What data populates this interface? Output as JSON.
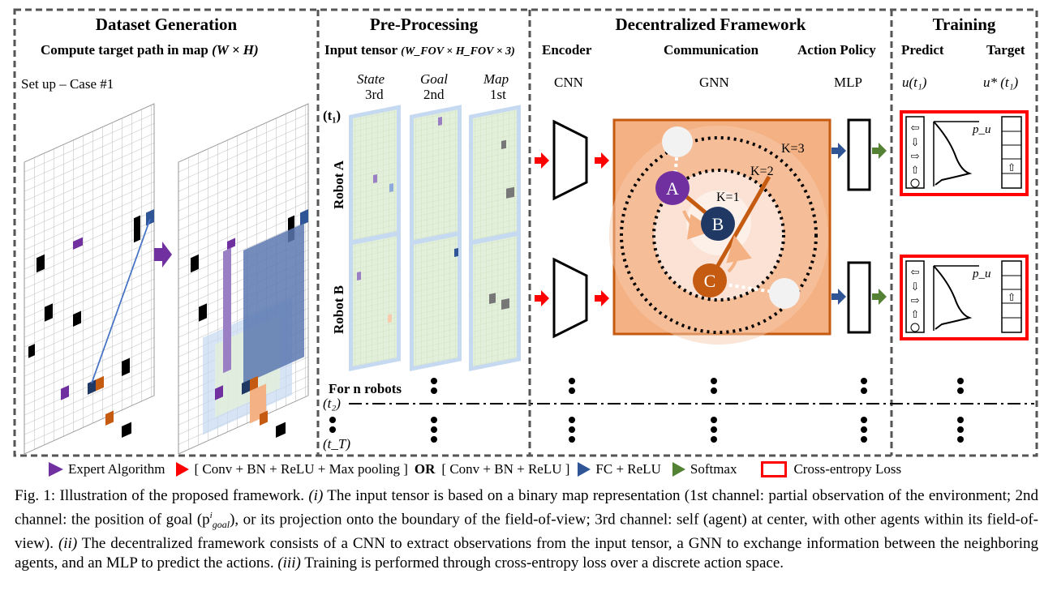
{
  "sections": {
    "dataset": "Dataset Generation",
    "preprocessing": "Pre-Processing",
    "framework": "Decentralized Framework",
    "training": "Training"
  },
  "dataset": {
    "subtitle": "Compute target path in map",
    "subtitle_math": "(W × H)",
    "setup": "Set up – Case #1"
  },
  "pre": {
    "input_tensor": "Input tensor",
    "input_tensor_math": "(W_FOV × H_FOV × 3)",
    "channels": [
      {
        "name": "State",
        "order": "3rd"
      },
      {
        "name": "Goal",
        "order": "2nd"
      },
      {
        "name": "Map",
        "order": "1st"
      }
    ],
    "t1": "(t₁)",
    "robot_a": "Robot A",
    "robot_b": "Robot B",
    "for_n": "For n robots",
    "t2": "(t₂)",
    "tT": "(t_T)"
  },
  "framework": {
    "encoder": "Encoder",
    "encoder_sub": "CNN",
    "communication": "Communication",
    "communication_sub": "GNN",
    "action_policy": "Action Policy",
    "action_policy_sub": "MLP",
    "k3": "K=3",
    "k2": "K=2",
    "k1": "K=1",
    "nodes": [
      "A",
      "B",
      "C"
    ]
  },
  "training": {
    "predict": "Predict",
    "target": "Target",
    "predict_math": "u(t₁)",
    "target_math": "u* (t₁)",
    "pu": "p_u"
  },
  "legend": {
    "expert": "Expert Algorithm",
    "conv": "[ Conv + BN + ReLU + Max pooling ]",
    "or": "OR",
    "conv2": "[ Conv + BN + ReLU ]",
    "fc": "FC + ReLU",
    "softmax": "Softmax",
    "loss": "Cross-entropy Loss"
  },
  "colors": {
    "purple": "#7030a0",
    "red": "#ff0000",
    "blue": "#2f5597",
    "green": "#548235",
    "orange_bg": "#f4b183",
    "orange_dark": "#c55a11",
    "navy": "#203864"
  },
  "caption": {
    "fig": "Fig. 1: Illustration of the proposed framework.",
    "i": "(i)",
    "t1": "The input tensor is based on a binary map representation (1st channel: partial observation of the environment; 2nd channel: the position of goal (p",
    "t1b": "), or its projection onto the boundary of the field-of-view; 3rd channel: self (agent) at center, with other agents within its field-of-view).",
    "ii": "(ii)",
    "t2": "The decentralized framework consists of a CNN to extract observations from the input tensor, a GNN to exchange information between the neighboring agents, and an MLP to predict the actions.",
    "iii": "(iii)",
    "t3": "Training is performed through cross-entropy loss over a discrete action space."
  }
}
